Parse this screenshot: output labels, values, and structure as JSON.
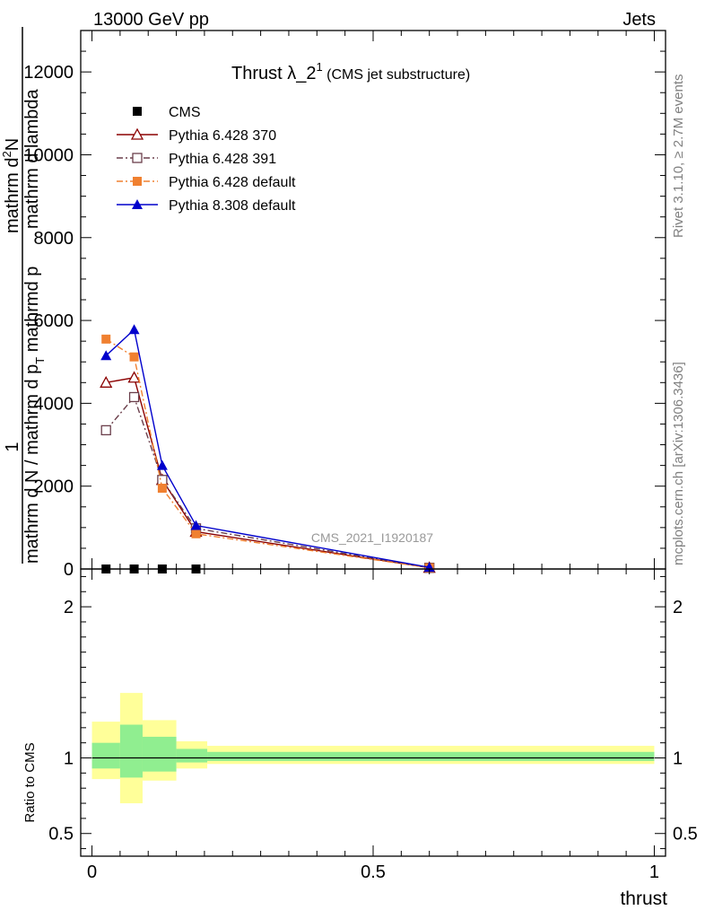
{
  "header": {
    "left": "13000 GeV pp",
    "right": "Jets"
  },
  "side_labels": {
    "rivet": "Rivet 3.1.10, ≥ 2.7M events",
    "mcplots": "mcplots.cern.ch [arXiv:1306.3436]"
  },
  "watermark": "CMS_2021_I1920187",
  "chart_data": [
    {
      "type": "line",
      "panel": "main",
      "title": {
        "main": "Thrust λ_2",
        "superscript": "1",
        "small": " (CMS jet substructure)"
      },
      "ylabel": {
        "numerator_top": "mathrm d",
        "numerator_sup": "2",
        "numerator_bottom": "N",
        "denominator": "mathrm d N / mathrm d p",
        "denominator_sub": "T",
        "trailing": " mathrmd p",
        "trailing2": " mathrm d lambda",
        "prefix": "1"
      },
      "ylim": [
        0,
        13000
      ],
      "yticks": [
        0,
        2000,
        4000,
        6000,
        8000,
        10000,
        12000
      ],
      "ytick_labels": [
        "0",
        "2000",
        "4000",
        "6000",
        "8000",
        "10000",
        "12000"
      ],
      "xlim": [
        -0.02,
        1.02
      ],
      "legend_position": "top-left",
      "series": [
        {
          "name": "CMS",
          "color": "#000000",
          "marker": "square-filled",
          "x": [
            0.025,
            0.075,
            0.125,
            0.185
          ],
          "y": [
            0,
            0,
            0,
            0
          ]
        },
        {
          "name": "Pythia 6.428 370",
          "color": "#8b0000",
          "marker": "triangle-open",
          "dash": "solid",
          "x": [
            0.025,
            0.075,
            0.125,
            0.185,
            0.6
          ],
          "y": [
            4500,
            4620,
            2150,
            900,
            30
          ]
        },
        {
          "name": "Pythia 6.428 391",
          "color": "#6b3f4b",
          "marker": "square-open",
          "dash": "dashdot",
          "x": [
            0.025,
            0.075,
            0.125,
            0.185,
            0.6
          ],
          "y": [
            3350,
            4150,
            2150,
            980,
            30
          ]
        },
        {
          "name": "Pythia 6.428 default",
          "color": "#f08030",
          "marker": "square-filled",
          "dash": "dashdot",
          "x": [
            0.025,
            0.075,
            0.125,
            0.185,
            0.6
          ],
          "y": [
            5550,
            5120,
            1950,
            850,
            30
          ]
        },
        {
          "name": "Pythia 8.308 default",
          "color": "#0000cc",
          "marker": "triangle-filled",
          "dash": "solid",
          "x": [
            0.025,
            0.075,
            0.125,
            0.185,
            0.6
          ],
          "y": [
            5150,
            5780,
            2500,
            1050,
            40
          ]
        }
      ]
    },
    {
      "type": "area",
      "panel": "ratio",
      "ylabel": "Ratio to CMS",
      "xlabel": "thrust",
      "ylim": [
        0.35,
        2.25
      ],
      "yticks": [
        0.5,
        1,
        2
      ],
      "ytick_labels": [
        "0.5",
        "1",
        "2"
      ],
      "xticks": [
        0,
        0.5,
        1
      ],
      "xtick_labels": [
        "0",
        "0.5",
        "1"
      ],
      "xlim": [
        -0.02,
        1.02
      ],
      "reference_line": 1,
      "bands": [
        {
          "x0": 0.0,
          "x1": 0.05,
          "yellow": [
            0.86,
            1.24
          ],
          "green": [
            0.93,
            1.1
          ]
        },
        {
          "x0": 0.05,
          "x1": 0.09,
          "yellow": [
            0.7,
            1.43
          ],
          "green": [
            0.87,
            1.22
          ]
        },
        {
          "x0": 0.09,
          "x1": 0.15,
          "yellow": [
            0.85,
            1.25
          ],
          "green": [
            0.91,
            1.14
          ]
        },
        {
          "x0": 0.15,
          "x1": 0.205,
          "yellow": [
            0.93,
            1.11
          ],
          "green": [
            0.97,
            1.06
          ]
        },
        {
          "x0": 0.205,
          "x1": 1.0,
          "yellow": [
            0.96,
            1.08
          ],
          "green": [
            0.98,
            1.04
          ]
        }
      ],
      "band_colors": {
        "yellow": "#ffff99",
        "green": "#90ee90"
      }
    }
  ]
}
